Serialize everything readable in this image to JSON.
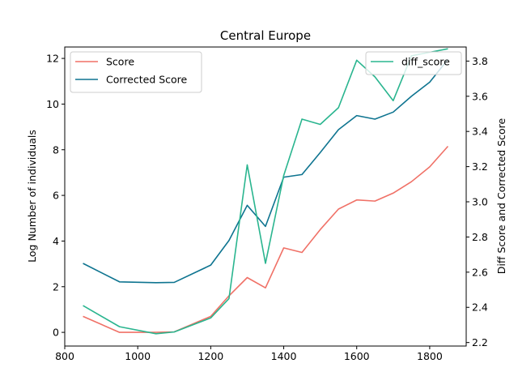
{
  "chart_data": {
    "type": "line",
    "title": "Central Europe",
    "xlabel": "",
    "ylabel_left": "Log Number of individuals",
    "ylabel_right": "Diff Score and Corrected Score",
    "xlim": [
      800,
      1900
    ],
    "ylim_left": [
      -0.6,
      12.5
    ],
    "ylim_right": [
      2.18,
      3.88
    ],
    "x_ticks": [
      800,
      1000,
      1200,
      1400,
      1600,
      1800
    ],
    "y_ticks_left": [
      0,
      2,
      4,
      6,
      8,
      10,
      12
    ],
    "y_ticks_right": [
      2.2,
      2.4,
      2.6,
      2.8,
      3.0,
      3.2,
      3.4,
      3.6,
      3.8
    ],
    "legend_left_position": "upper-left",
    "legend_right_position": "upper-right",
    "grid": false,
    "series": [
      {
        "name": "Score",
        "axis": "left",
        "color": "#f07167",
        "x": [
          850,
          950,
          1050,
          1100,
          1200,
          1250,
          1300,
          1350,
          1400,
          1450,
          1500,
          1550,
          1600,
          1650,
          1700,
          1750,
          1800,
          1850
        ],
        "y": [
          0.7,
          0.0,
          0.0,
          0.02,
          0.7,
          1.6,
          2.4,
          1.95,
          3.7,
          3.5,
          4.5,
          5.4,
          5.8,
          5.75,
          6.1,
          6.6,
          7.25,
          8.15
        ]
      },
      {
        "name": "Corrected Score",
        "axis": "right",
        "color": "#0e7490",
        "x": [
          850,
          950,
          1050,
          1100,
          1200,
          1250,
          1300,
          1350,
          1400,
          1450,
          1500,
          1550,
          1600,
          1650,
          1700,
          1750,
          1800,
          1850
        ],
        "y": [
          2.65,
          2.545,
          2.54,
          2.542,
          2.64,
          2.78,
          2.98,
          2.86,
          3.14,
          3.155,
          3.28,
          3.41,
          3.49,
          3.47,
          3.51,
          3.6,
          3.68,
          3.81
        ]
      },
      {
        "name": "diff_score",
        "axis": "right",
        "color": "#2ab58f",
        "x": [
          850,
          950,
          1050,
          1100,
          1200,
          1250,
          1300,
          1350,
          1400,
          1450,
          1500,
          1550,
          1600,
          1650,
          1700,
          1750,
          1800,
          1850
        ],
        "y": [
          2.41,
          2.29,
          2.25,
          2.26,
          2.34,
          2.45,
          3.21,
          2.65,
          3.15,
          3.47,
          3.44,
          3.535,
          3.805,
          3.71,
          3.575,
          3.83,
          3.85,
          3.87
        ]
      }
    ]
  }
}
